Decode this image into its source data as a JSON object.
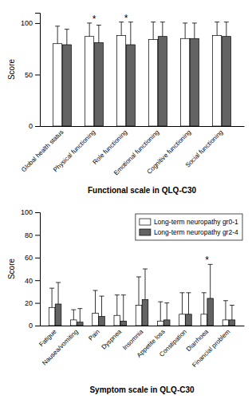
{
  "chart_data": [
    {
      "type": "bar",
      "categories": [
        "Global health status",
        "Physical functioning",
        "Role functioning",
        "Emotional functioning",
        "Cognitive functioning",
        "Social functioning"
      ],
      "series": [
        {
          "color": "#ffffff",
          "values": [
            80,
            87,
            88,
            84,
            85,
            88
          ],
          "errors": [
            17,
            13,
            13,
            17,
            15,
            13
          ]
        },
        {
          "color": "#636363",
          "values": [
            79,
            81,
            79,
            87,
            85,
            87
          ],
          "errors": [
            15,
            17,
            22,
            14,
            15,
            14
          ]
        }
      ],
      "annotations": [
        {
          "text": "*",
          "x": "Physical functioning"
        },
        {
          "text": "*",
          "x": "Role functioning"
        }
      ],
      "ylabel": "Score",
      "xlabel": "Functional scale in QLQ-C30",
      "ylim": [
        0,
        110
      ],
      "yticks": [
        0,
        50,
        100
      ]
    },
    {
      "type": "bar",
      "categories": [
        "Fatigue",
        "Nausea/vomiting",
        "Pain",
        "Dyspnea",
        "Insomnia",
        "Appetite loss",
        "Constipation",
        "Diarrhoea",
        "Financial problem"
      ],
      "series": [
        {
          "name": "Long-term neuropathy gr0-1",
          "color": "#ffffff",
          "values": [
            16,
            5,
            11,
            9,
            18,
            4,
            10,
            10,
            5
          ],
          "errors": [
            17,
            9,
            20,
            18,
            25,
            17,
            19,
            19,
            17
          ]
        },
        {
          "name": "Long-term neuropathy gr2-4",
          "color": "#636363",
          "values": [
            19,
            3,
            8,
            4,
            23,
            5,
            10,
            24,
            5
          ],
          "errors": [
            19,
            12,
            18,
            23,
            27,
            15,
            19,
            30,
            13
          ]
        }
      ],
      "annotations": [
        {
          "text": "*",
          "x": "Diarrhoea"
        }
      ],
      "ylabel": "Score",
      "xlabel": "Symptom scale in QLQ-C30",
      "ylim": [
        0,
        100
      ],
      "yticks": [
        0,
        20,
        40,
        60,
        80,
        100
      ],
      "legend": "upper right"
    }
  ]
}
